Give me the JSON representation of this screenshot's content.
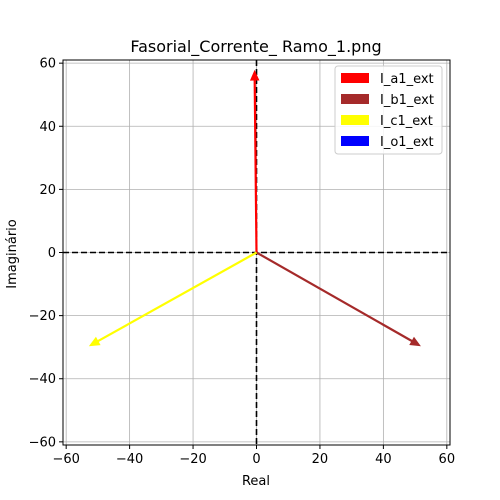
{
  "chart_data": {
    "type": "quiver",
    "title": "Fasorial_Corrente_ Ramo_1.png",
    "xlabel": "Real",
    "ylabel": "Imaginário",
    "xlim": [
      -61,
      61
    ],
    "ylim": [
      -61,
      61
    ],
    "xticks": [
      -60,
      -40,
      -20,
      0,
      20,
      40,
      60
    ],
    "yticks": [
      -60,
      -40,
      -20,
      0,
      20,
      40,
      60
    ],
    "xtick_labels": [
      "−60",
      "−40",
      "−20",
      "0",
      "20",
      "40",
      "60"
    ],
    "ytick_labels": [
      "−60",
      "−40",
      "−20",
      "0",
      "20",
      "40",
      "60"
    ],
    "grid": true,
    "legend_position": "top-right",
    "reference_lines": {
      "x": 0,
      "y": 0,
      "style": "dashed",
      "color": "#000000"
    },
    "series": [
      {
        "name": "I_a1_ext",
        "color": "#ff0000",
        "start": [
          0,
          0
        ],
        "end": [
          -0.6,
          57.5
        ]
      },
      {
        "name": "I_b1_ext",
        "color": "#a52a2a",
        "start": [
          0,
          0
        ],
        "end": [
          51.5,
          -29.5
        ]
      },
      {
        "name": "I_c1_ext",
        "color": "#ffff00",
        "start": [
          0,
          0
        ],
        "end": [
          -52.5,
          -29.5
        ]
      },
      {
        "name": "I_o1_ext",
        "color": "#0000ff",
        "start": [
          0,
          0
        ],
        "end": [
          0,
          0
        ]
      }
    ]
  }
}
